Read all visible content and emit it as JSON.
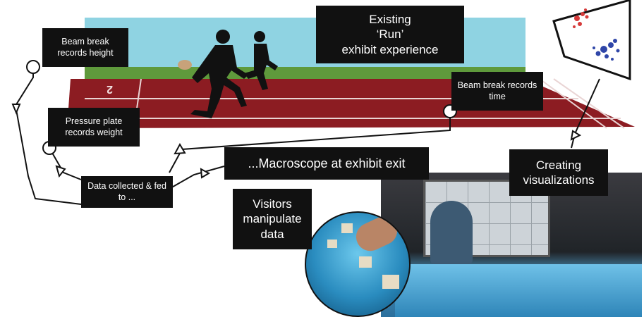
{
  "labels": {
    "beam_height": "Beam break records height",
    "existing_run": [
      "Existing",
      "‘Run’",
      "exhibit experience"
    ],
    "beam_time": "Beam break records time",
    "pressure_plate": "Pressure plate records weight",
    "data_collected": "Data collected & fed to ...",
    "macroscope": "...Macroscope at exhibit exit",
    "creating_viz": "Creating visualizations",
    "visitors": "Visitors manipulate data"
  },
  "track": {
    "lane_numbers": [
      "2"
    ]
  },
  "colors": {
    "sky": "#8fd3e2",
    "track": "#8c1c22",
    "grass": "#5f9a3c",
    "label_bg": "#111111",
    "scatter_red": "#d63a3a",
    "scatter_blue": "#2f46a8"
  }
}
